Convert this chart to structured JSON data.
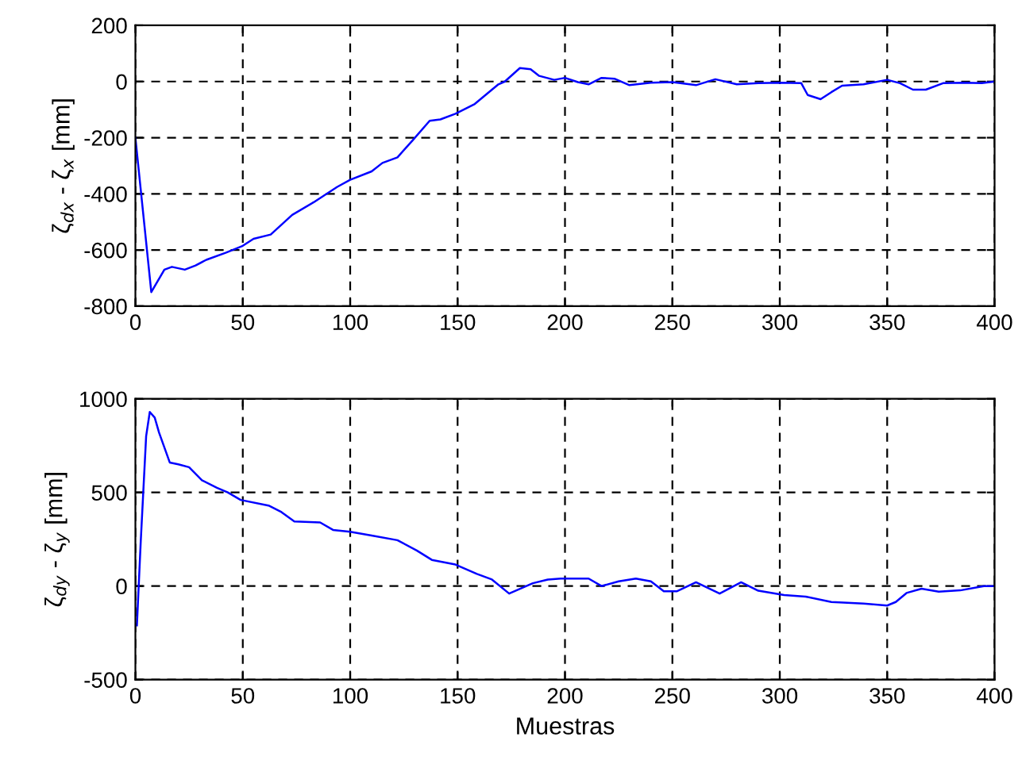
{
  "chart_data": [
    {
      "type": "line",
      "ylabel": "ζ$_{dx}$ - ζ$_{x}$ [mm]",
      "xlim": [
        0,
        400
      ],
      "xticks": [
        0,
        50,
        100,
        150,
        200,
        250,
        300,
        350,
        400
      ],
      "ylim": [
        -800,
        200
      ],
      "yticks": [
        -800,
        -600,
        -400,
        -200,
        0,
        200
      ],
      "grid": true,
      "line_style": "solid",
      "marker": "none",
      "series": [
        {
          "color": "#0000ff",
          "x": [
            0,
            7.4,
            13.5,
            17,
            23,
            28,
            33,
            42,
            50,
            55,
            63,
            73,
            83,
            94,
            100,
            110,
            115,
            122,
            129,
            137,
            142,
            149,
            158,
            169,
            172,
            179,
            184,
            188,
            195,
            200,
            206,
            211,
            217,
            223,
            230,
            240,
            250,
            261,
            270,
            280,
            290,
            300,
            310,
            313,
            319,
            324,
            329,
            339,
            350,
            356,
            362,
            368,
            376,
            386,
            394,
            400
          ],
          "values": [
            -200,
            -750,
            -670,
            -660,
            -670,
            -655,
            -635,
            -610,
            -585,
            -560,
            -545,
            -475,
            -430,
            -375,
            -350,
            -320,
            -290,
            -270,
            -210,
            -140,
            -135,
            -115,
            -80,
            -10,
            0,
            48,
            44,
            20,
            6,
            13,
            -2,
            -10,
            13,
            10,
            -13,
            -4,
            -2,
            -13,
            8,
            -10,
            -6,
            -4,
            -6,
            -48,
            -63,
            -38,
            -15,
            -10,
            6,
            -6,
            -29,
            -29,
            -6,
            -4,
            -6,
            0
          ]
        }
      ]
    },
    {
      "type": "line",
      "ylabel": "ζ$_{dy}$ - ζ$_{y}$ [mm]",
      "xlabel": "Muestras",
      "xlim": [
        0,
        400
      ],
      "xticks": [
        0,
        50,
        100,
        150,
        200,
        250,
        300,
        350,
        400
      ],
      "ylim": [
        -500,
        1000
      ],
      "yticks": [
        -500,
        0,
        500,
        1000
      ],
      "grid": true,
      "line_style": "solid",
      "marker": "none",
      "series": [
        {
          "color": "#0000ff",
          "x": [
            0.7,
            2.5,
            5,
            6.7,
            9,
            11,
            16,
            20,
            25,
            31,
            38,
            43,
            49,
            62,
            68,
            74,
            86,
            92,
            100,
            110,
            122,
            131,
            138,
            149,
            159,
            166,
            174,
            185,
            192,
            198,
            211,
            217,
            225,
            233,
            240,
            246,
            252,
            261,
            272,
            282,
            290,
            302,
            312,
            324,
            339,
            350,
            354,
            359,
            366,
            374,
            384,
            395,
            400
          ],
          "values": [
            -210,
            240,
            800,
            930,
            900,
            820,
            660,
            650,
            635,
            565,
            525,
            500,
            460,
            430,
            395,
            345,
            340,
            300,
            290,
            270,
            245,
            190,
            140,
            115,
            65,
            35,
            -40,
            15,
            35,
            40,
            40,
            0,
            25,
            40,
            25,
            -28,
            -28,
            20,
            -40,
            20,
            -25,
            -48,
            -56,
            -85,
            -93,
            -104,
            -85,
            -37,
            -14,
            -30,
            -23,
            0,
            0
          ]
        }
      ]
    }
  ]
}
